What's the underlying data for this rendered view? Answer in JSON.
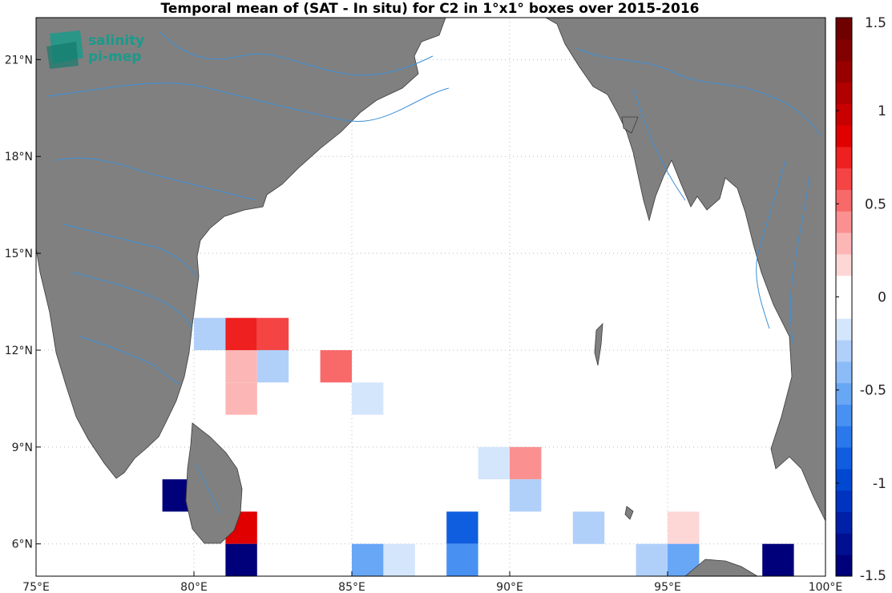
{
  "title": "Temporal mean of (SAT - In situ) for C2 in 1°x1° boxes over 2015-2016",
  "logo": {
    "line1": "salinity",
    "line2": "pi-mep"
  },
  "colors": {
    "land": "#808080",
    "coast": "#3a3a3a",
    "river": "#3c8fd6",
    "ocean": "#ffffff",
    "grid": "#bbbbbb"
  },
  "chart_data": {
    "type": "heatmap",
    "xlim": [
      75,
      100
    ],
    "ylim": [
      5,
      22.3
    ],
    "x_ticks": [
      {
        "value": 75,
        "label": "75°E"
      },
      {
        "value": 80,
        "label": "80°E"
      },
      {
        "value": 85,
        "label": "85°E"
      },
      {
        "value": 90,
        "label": "90°E"
      },
      {
        "value": 95,
        "label": "95°E"
      },
      {
        "value": 100,
        "label": "100°E"
      }
    ],
    "y_ticks": [
      {
        "value": 6,
        "label": "6°N"
      },
      {
        "value": 9,
        "label": "9°N"
      },
      {
        "value": 12,
        "label": "12°N"
      },
      {
        "value": 15,
        "label": "15°N"
      },
      {
        "value": 18,
        "label": "18°N"
      },
      {
        "value": 21,
        "label": "21°N"
      }
    ],
    "grid": true,
    "colorbar": {
      "clim": [
        -1.5,
        1.5
      ],
      "ticks": [
        {
          "value": 1.5,
          "label": "1.5"
        },
        {
          "value": 1,
          "label": "1"
        },
        {
          "value": 0.5,
          "label": "0.5"
        },
        {
          "value": 0,
          "label": "0"
        },
        {
          "value": -0.5,
          "label": "-0.5"
        },
        {
          "value": -1,
          "label": "-1"
        },
        {
          "value": -1.5,
          "label": "-1.5"
        }
      ],
      "colors": [
        "#00007a",
        "#001090",
        "#0020a8",
        "#0033c0",
        "#0048d2",
        "#105ee0",
        "#2a78ec",
        "#4890f2",
        "#68a6f6",
        "#8cbcf8",
        "#b0d0fa",
        "#d4e6fc",
        "#ffffff",
        "#ffffff",
        "#fdd6d6",
        "#fcb6b6",
        "#fa9090",
        "#f86a6a",
        "#f44444",
        "#ee2020",
        "#e00000",
        "#c80000",
        "#b00000",
        "#980000",
        "#820000",
        "#6e0000"
      ]
    },
    "cells": [
      {
        "lon": 80,
        "lat": 12,
        "value": -0.3
      },
      {
        "lon": 81,
        "lat": 12,
        "value": 0.8
      },
      {
        "lon": 82,
        "lat": 12,
        "value": 0.65
      },
      {
        "lon": 81,
        "lat": 11,
        "value": 0.3
      },
      {
        "lon": 81,
        "lat": 10,
        "value": 0.3
      },
      {
        "lon": 82,
        "lat": 11,
        "value": -0.3
      },
      {
        "lon": 84,
        "lat": 11,
        "value": 0.5
      },
      {
        "lon": 85,
        "lat": 10,
        "value": -0.2
      },
      {
        "lon": 79,
        "lat": 7,
        "value": -1.5
      },
      {
        "lon": 81,
        "lat": 6,
        "value": 0.9
      },
      {
        "lon": 81,
        "lat": 5,
        "value": -1.5
      },
      {
        "lon": 85,
        "lat": 5,
        "value": -0.55
      },
      {
        "lon": 86,
        "lat": 5,
        "value": -0.2
      },
      {
        "lon": 88,
        "lat": 6,
        "value": -0.85
      },
      {
        "lon": 88,
        "lat": 5,
        "value": -0.6
      },
      {
        "lon": 89,
        "lat": 8,
        "value": -0.2
      },
      {
        "lon": 90,
        "lat": 8,
        "value": 0.4
      },
      {
        "lon": 90,
        "lat": 7,
        "value": -0.3
      },
      {
        "lon": 92,
        "lat": 6,
        "value": -0.3
      },
      {
        "lon": 94,
        "lat": 5,
        "value": -0.3
      },
      {
        "lon": 95,
        "lat": 6,
        "value": 0.2
      },
      {
        "lon": 95,
        "lat": 5,
        "value": -0.55
      },
      {
        "lon": 98,
        "lat": 5,
        "value": -1.5
      }
    ]
  }
}
